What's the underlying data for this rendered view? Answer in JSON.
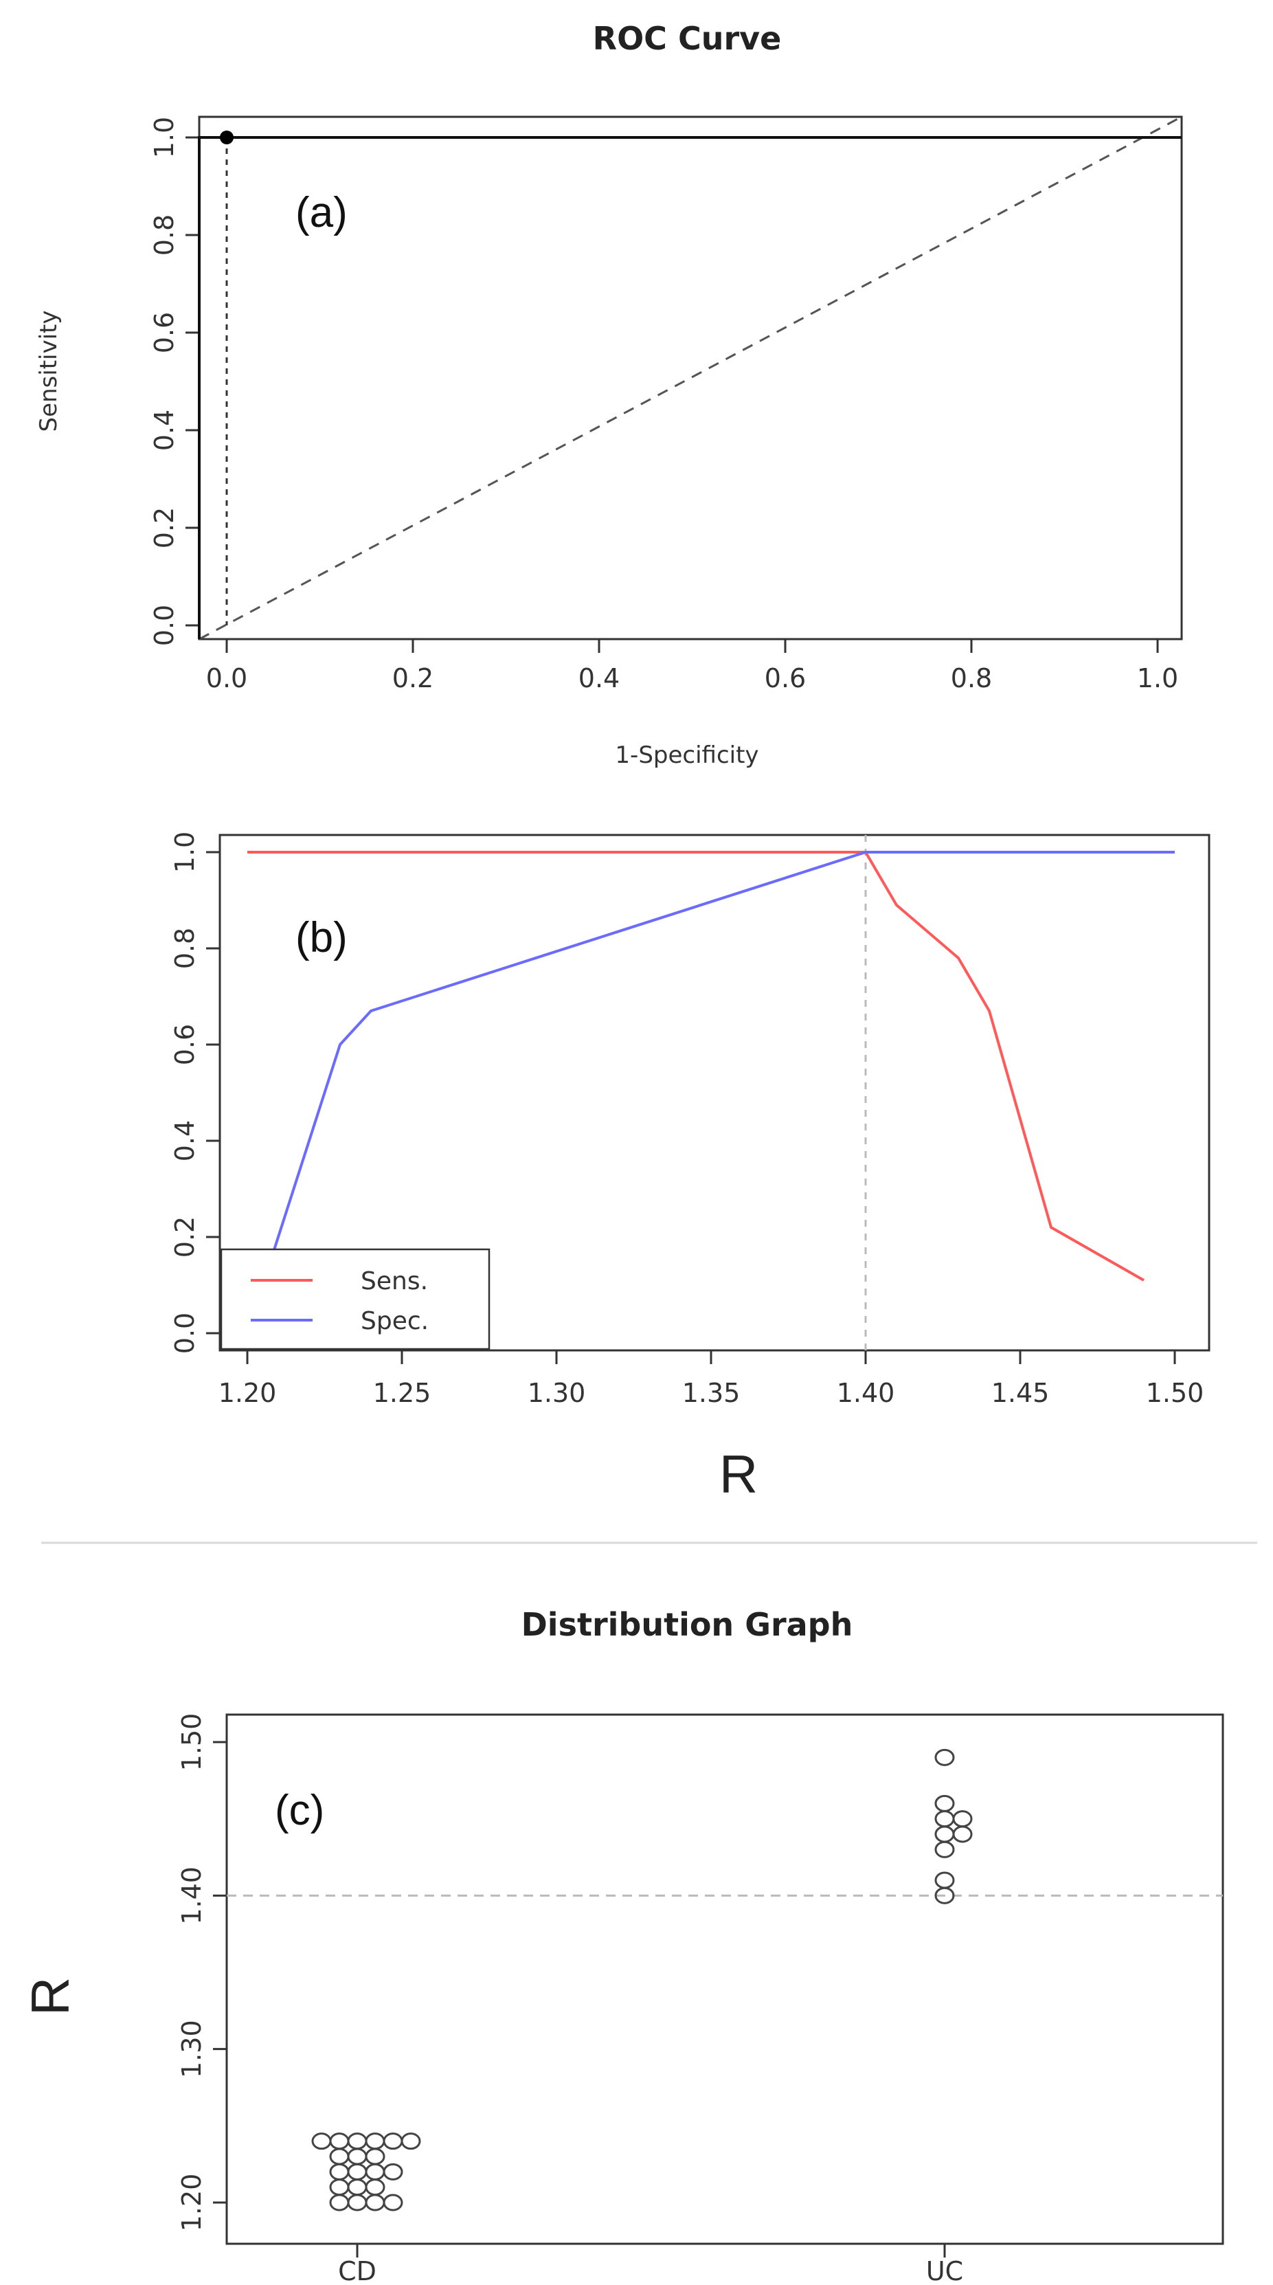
{
  "chart_data": [
    {
      "type": "line",
      "title": "ROC Curve",
      "panel_label": "(a)",
      "xlabel": "1-Specificity",
      "ylabel": "Sensitivity",
      "xlim": [
        0,
        1
      ],
      "ylim": [
        0,
        1
      ],
      "x_ticks": [
        "0.0",
        "0.2",
        "0.4",
        "0.6",
        "0.8",
        "1.0"
      ],
      "y_ticks": [
        "0.0",
        "0.2",
        "0.4",
        "0.6",
        "0.8",
        "1.0"
      ],
      "series": [
        {
          "x": [
            0,
            0,
            1
          ],
          "y": [
            0,
            1,
            1
          ]
        }
      ],
      "optimal_point": {
        "x": 0,
        "y": 1
      },
      "reference_diagonal": true,
      "colors": {
        "curve": "#111111",
        "reference": "#555555"
      },
      "grid": false
    },
    {
      "type": "line",
      "panel_label": "(b)",
      "xlabel": "R",
      "xlim": [
        1.2,
        1.5
      ],
      "ylim": [
        0,
        1
      ],
      "x_ticks": [
        "1.20",
        "1.25",
        "1.30",
        "1.35",
        "1.40",
        "1.45",
        "1.50"
      ],
      "y_ticks": [
        "0.0",
        "0.2",
        "0.4",
        "0.6",
        "0.8",
        "1.0"
      ],
      "series": [
        {
          "name": "Sens.",
          "color": "#ff5a5a",
          "x": [
            1.2,
            1.4,
            1.41,
            1.43,
            1.44,
            1.46,
            1.49
          ],
          "y": [
            1.0,
            1.0,
            0.89,
            0.78,
            0.67,
            0.22,
            0.11
          ]
        },
        {
          "name": "Spec.",
          "color": "#6b6bff",
          "x": [
            1.2,
            1.23,
            1.24,
            1.4,
            1.5
          ],
          "y": [
            0.0,
            0.6,
            0.67,
            1.0,
            1.0
          ]
        }
      ],
      "cutoff_x": 1.4,
      "legend": "bottom-left",
      "grid": false
    },
    {
      "type": "scatter",
      "title": "Distribution Graph",
      "panel_label": "(c)",
      "ylabel": "R",
      "categories": [
        "CD",
        "UC"
      ],
      "ylim": [
        1.18,
        1.52
      ],
      "y_ticks": [
        "1.20",
        "1.30",
        "1.40",
        "1.50"
      ],
      "series": [
        {
          "category": "CD",
          "values": [
            1.24,
            1.24,
            1.24,
            1.24,
            1.24,
            1.24,
            1.23,
            1.23,
            1.23,
            1.22,
            1.22,
            1.22,
            1.22,
            1.21,
            1.21,
            1.21,
            1.2,
            1.2,
            1.2,
            1.2
          ]
        },
        {
          "category": "UC",
          "values": [
            1.49,
            1.46,
            1.45,
            1.45,
            1.44,
            1.44,
            1.43,
            1.41,
            1.4
          ]
        }
      ],
      "cutoff_y": 1.4,
      "grid": false
    }
  ]
}
